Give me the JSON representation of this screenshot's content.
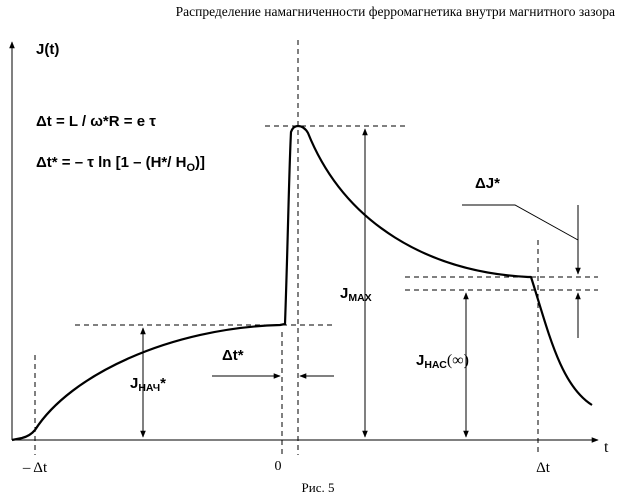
{
  "header": {
    "title": "Распределение намагниченности ферромагнетика внутри магнитного зазора"
  },
  "caption": "Рис. 5",
  "axes": {
    "y_label": "J(t)",
    "x_label": "t"
  },
  "formulas": {
    "line1": "Δt = L / ω*R = e τ",
    "line2": "Δt* = – τ ln [1 – (H*/ H",
    "line2_sub": "O",
    "line2_end": ")]"
  },
  "ticks": {
    "left": "– Δt",
    "zero": "0",
    "right": "Δt"
  },
  "labels": {
    "j_nach_main": "J",
    "j_nach_sub": "НАЧ",
    "j_nach_star": "*",
    "dt_star": "Δt*",
    "j_max_main": "J",
    "j_max_sub": "MAX",
    "j_nas_main": "J",
    "j_nas_sub": "НАС",
    "j_nas_end": "(∞)",
    "delta_j": "ΔJ*"
  },
  "chart_data": {
    "type": "line",
    "x_ticks": [
      "– Δt",
      "0",
      "Δt"
    ],
    "series": [
      {
        "description_levels": [
          "J_НАЧ*",
          "J_MAX",
          "J_НАС(∞)"
        ]
      }
    ],
    "grid": false
  }
}
